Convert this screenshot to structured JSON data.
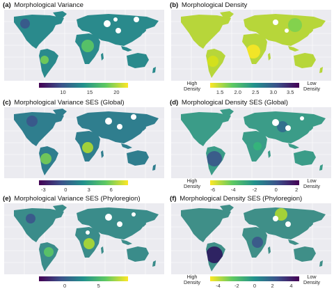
{
  "panels": [
    {
      "letter": "(a)",
      "title": "Morphological Variance",
      "palette": "viridis",
      "ticks": [
        "10",
        "15",
        "20"
      ],
      "left_label": "",
      "right_label": ""
    },
    {
      "letter": "(b)",
      "title": "Morphological Density",
      "palette": "viridis_reversed",
      "ticks": [
        "1.5",
        "2.0",
        "2.5",
        "3.0",
        "3.5"
      ],
      "left_label": "High\nDensity",
      "right_label": "Low\nDensity"
    },
    {
      "letter": "(c)",
      "title": "Morphological Variance SES (Global)",
      "palette": "viridis",
      "ticks": [
        "-3",
        "0",
        "3",
        "6"
      ],
      "left_label": "",
      "right_label": ""
    },
    {
      "letter": "(d)",
      "title": "Morphological Density SES (Global)",
      "palette": "viridis_reversed",
      "ticks": [
        "-6",
        "-4",
        "-2",
        "0",
        "2"
      ],
      "left_label": "High\nDensity",
      "right_label": "Low\nDensity"
    },
    {
      "letter": "(e)",
      "title": "Morphological Variance SES (Phyloregion)",
      "palette": "viridis",
      "ticks": [
        "0",
        "5"
      ],
      "left_label": "",
      "right_label": ""
    },
    {
      "letter": "(f)",
      "title": "Morphological Density SES (Phyloregion)",
      "palette": "viridis_reversed",
      "ticks": [
        "-4",
        "-2",
        "0",
        "2",
        "4"
      ],
      "left_label": "High\nDensity",
      "right_label": "Low\nDensity"
    }
  ],
  "colors": {
    "background": "#ebebf0",
    "viridis": [
      "#440154",
      "#3b528b",
      "#21918c",
      "#5ec962",
      "#fde725"
    ],
    "land_fill": {
      "a": "#2a8a8c",
      "b": "#b7d63a",
      "c": "#2f7e8e",
      "d": "#3b9c88",
      "e": "#3a8c8a",
      "f": "#3f8f88"
    }
  }
}
